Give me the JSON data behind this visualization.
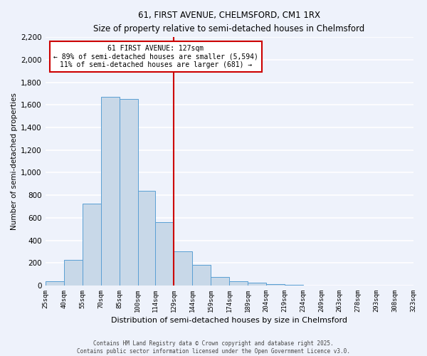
{
  "title": "61, FIRST AVENUE, CHELMSFORD, CM1 1RX",
  "subtitle": "Size of property relative to semi-detached houses in Chelmsford",
  "xlabel": "Distribution of semi-detached houses by size in Chelmsford",
  "ylabel": "Number of semi-detached properties",
  "bin_edges": [
    25,
    40,
    55,
    70,
    85,
    100,
    114,
    129,
    144,
    159,
    174,
    189,
    204,
    219,
    234,
    249,
    263,
    278,
    293,
    308,
    323
  ],
  "bin_labels": [
    "25sqm",
    "40sqm",
    "55sqm",
    "70sqm",
    "85sqm",
    "100sqm",
    "114sqm",
    "129sqm",
    "144sqm",
    "159sqm",
    "174sqm",
    "189sqm",
    "204sqm",
    "219sqm",
    "234sqm",
    "249sqm",
    "263sqm",
    "278sqm",
    "293sqm",
    "308sqm",
    "323sqm"
  ],
  "counts": [
    40,
    225,
    725,
    1670,
    1655,
    840,
    560,
    300,
    180,
    75,
    35,
    25,
    15,
    5,
    0,
    0,
    0,
    0,
    0,
    0
  ],
  "bar_facecolor": "#c8d8e8",
  "bar_edgecolor": "#5a9fd4",
  "vline_x": 129,
  "vline_color": "#cc0000",
  "annotation_title": "61 FIRST AVENUE: 127sqm",
  "annotation_line1": "← 89% of semi-detached houses are smaller (5,594)",
  "annotation_line2": "11% of semi-detached houses are larger (681) →",
  "annotation_box_edgecolor": "#cc0000",
  "ylim": [
    0,
    2200
  ],
  "yticks": [
    0,
    200,
    400,
    600,
    800,
    1000,
    1200,
    1400,
    1600,
    1800,
    2000,
    2200
  ],
  "background_color": "#eef2fb",
  "grid_color": "#ffffff",
  "footer_line1": "Contains HM Land Registry data © Crown copyright and database right 2025.",
  "footer_line2": "Contains public sector information licensed under the Open Government Licence v3.0."
}
